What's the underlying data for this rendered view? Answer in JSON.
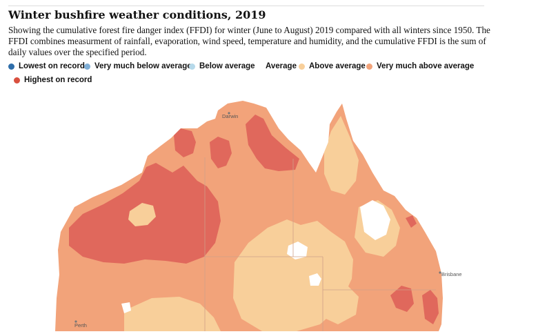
{
  "chart": {
    "title": "Winter bushfire weather conditions, 2019",
    "subtitle": "Showing the cumulative forest fire danger index (FFDI) for winter (June to August) 2019 compared with all winters since 1950. The FFDI combines measurment of rainfall, evaporation, wind speed, temperature and humidity, and the cumulative FFDI is the sum of daily values over the specified period."
  },
  "legend": {
    "items": [
      {
        "label": "Lowest on record",
        "color": "#2f6eaa"
      },
      {
        "label": "Very much below average",
        "color": "#7faed6"
      },
      {
        "label": "Below average",
        "color": "#b6d9ea"
      },
      {
        "label": "Average",
        "color": "#ffffff"
      },
      {
        "label": "Above average",
        "color": "#f8cf9a"
      },
      {
        "label": "Very much above average",
        "color": "#f2a37a"
      },
      {
        "label": "Highest on record",
        "color": "#d9503f"
      }
    ]
  },
  "map": {
    "cities": [
      "Darwin",
      "Brisbane",
      "Perth"
    ],
    "colors": {
      "highest": "#e0685c",
      "very_much_above": "#f2a37a",
      "above": "#f8cf9a",
      "average": "#ffffff",
      "below": "#b6d9ea"
    }
  }
}
